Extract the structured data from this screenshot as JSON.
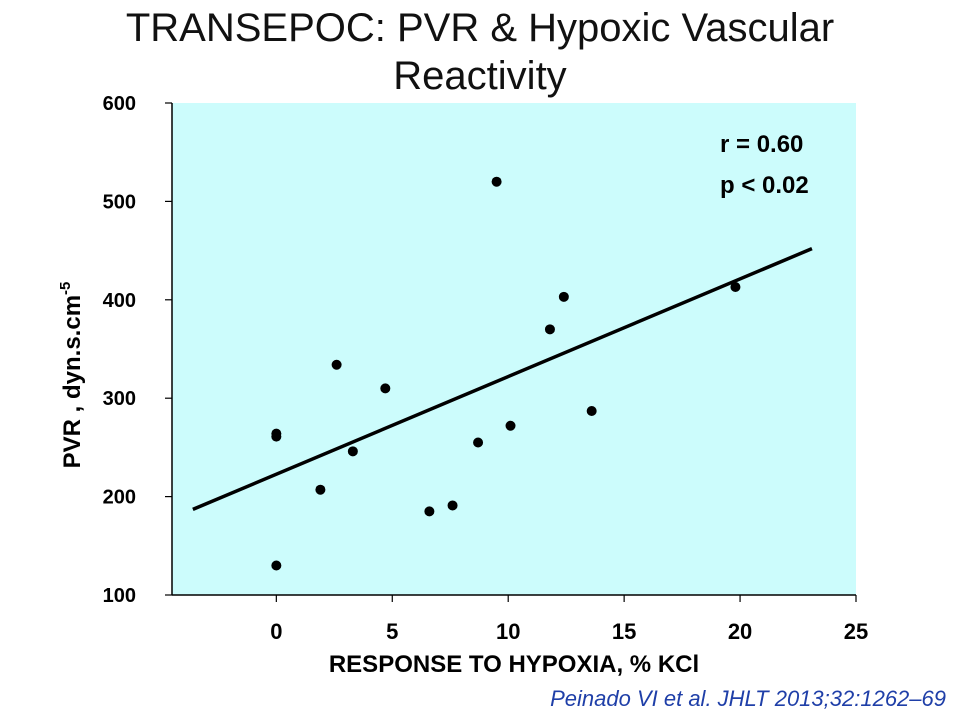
{
  "title_line1": "TRANSEPOC: PVR & Hypoxic Vascular",
  "title_line2": "Reactivity",
  "citation": "Peinado VI et al. JHLT 2013;32:1262–69",
  "chart_data": {
    "type": "scatter",
    "xlabel": "RESPONSE  TO HYPOXIA,  % KCl",
    "ylabel": "PVR , dyn.s.cm",
    "ylabel_superscript": "-5",
    "xlim": [
      -4.5,
      25
    ],
    "ylim": [
      100,
      600
    ],
    "x_ticks": [
      0,
      5,
      10,
      15,
      20,
      25
    ],
    "y_ticks": [
      100,
      200,
      300,
      400,
      500,
      600
    ],
    "grid": false,
    "plot_background": "#ccfcfc",
    "point_color": "#000000",
    "points": [
      {
        "x": 0.0,
        "y": 130
      },
      {
        "x": 0.0,
        "y": 261
      },
      {
        "x": 0.0,
        "y": 264
      },
      {
        "x": 1.9,
        "y": 207
      },
      {
        "x": 2.6,
        "y": 334
      },
      {
        "x": 3.3,
        "y": 246
      },
      {
        "x": 4.7,
        "y": 310
      },
      {
        "x": 6.6,
        "y": 185
      },
      {
        "x": 7.6,
        "y": 191
      },
      {
        "x": 8.7,
        "y": 255
      },
      {
        "x": 9.5,
        "y": 520
      },
      {
        "x": 10.1,
        "y": 272
      },
      {
        "x": 11.8,
        "y": 370
      },
      {
        "x": 12.4,
        "y": 403
      },
      {
        "x": 13.6,
        "y": 287
      },
      {
        "x": 19.8,
        "y": 413
      }
    ],
    "regression_line": {
      "x": [
        -3.6,
        23.1
      ],
      "y": [
        187,
        452
      ]
    },
    "annotations": [
      "r = 0.60",
      "p < 0.02"
    ]
  }
}
